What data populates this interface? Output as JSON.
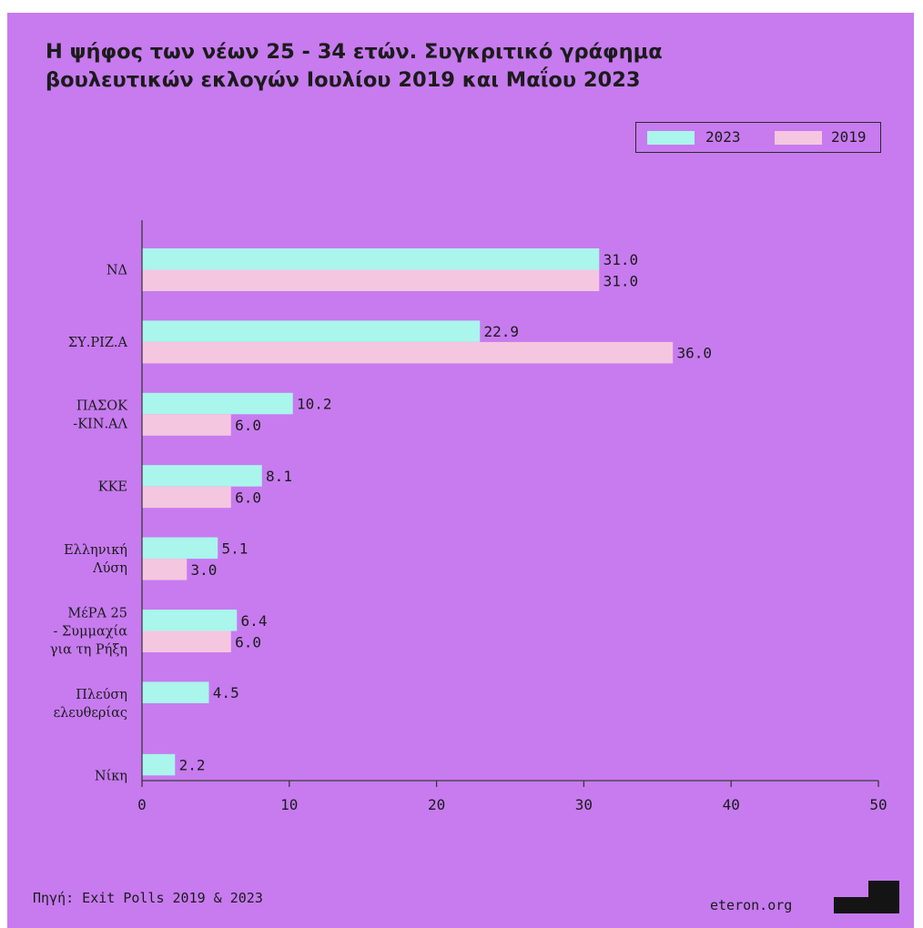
{
  "chart_data": {
    "type": "bar",
    "orientation": "horizontal",
    "title": "Η ψήφος των νέων 25 - 34 ετών. Συγκριτικό γράφημα βουλευτικών εκλογών Ιουλίου 2019 και Μαΐου 2023",
    "title_lines": [
      "Η ψήφος των νέων 25 - 34 ετών. Συγκριτικό γράφημα",
      "βουλευτικών εκλογών Ιουλίου 2019 και Μαΐου 2023"
    ],
    "categories": [
      "ΝΔ",
      "ΣΥ.ΡΙΖ.Α",
      "ΠΑΣΟΚ -ΚΙΝ.ΑΛ",
      "ΚΚΕ",
      "Ελληνική Λύση",
      "ΜέΡΑ 25 - Συμμαχία για τη Ρήξη",
      "Πλεύση ελευθερίας",
      "Νίκη"
    ],
    "category_lines": [
      [
        "ΝΔ"
      ],
      [
        "ΣΥ.ΡΙΖ.Α"
      ],
      [
        "ΠΑΣΟΚ",
        "-ΚΙΝ.ΑΛ"
      ],
      [
        "ΚΚΕ"
      ],
      [
        "Ελληνική",
        "Λύση"
      ],
      [
        "ΜέΡΑ 25",
        "- Συμμαχία",
        "για τη Ρήξη"
      ],
      [
        "Πλεύση",
        "ελευθερίας"
      ],
      [
        "Νίκη"
      ]
    ],
    "series": [
      {
        "name": "2023",
        "color": "#aaf5ec",
        "values": [
          31.0,
          22.9,
          10.2,
          8.1,
          5.1,
          6.4,
          4.5,
          2.2
        ],
        "labels": [
          "31.0",
          "22.9",
          "10.2",
          "8.1",
          "5.1",
          "6.4",
          "4.5",
          "2.2"
        ]
      },
      {
        "name": "2019",
        "color": "#f5c6df",
        "values": [
          31.0,
          36.0,
          6.0,
          6.0,
          3.0,
          6.0,
          null,
          null
        ],
        "labels": [
          "31.0",
          "36.0",
          "6.0",
          "6.0",
          "3.0",
          "6.0",
          "",
          ""
        ]
      }
    ],
    "xlim": [
      0,
      50
    ],
    "x_ticks": [
      0,
      10,
      20,
      30,
      40,
      50
    ],
    "x_tick_labels": [
      "0",
      "10",
      "20",
      "30",
      "40",
      "50"
    ],
    "xlabel": "",
    "ylabel": "",
    "grid": false,
    "legend_position": "top-right"
  },
  "colors": {
    "background": "#c77bef",
    "axis": "#3a3a3a",
    "text": "#1b1b1b"
  },
  "footer": {
    "source": "Πηγή: Exit Polls 2019 & 2023",
    "brand": "eteron.org"
  }
}
